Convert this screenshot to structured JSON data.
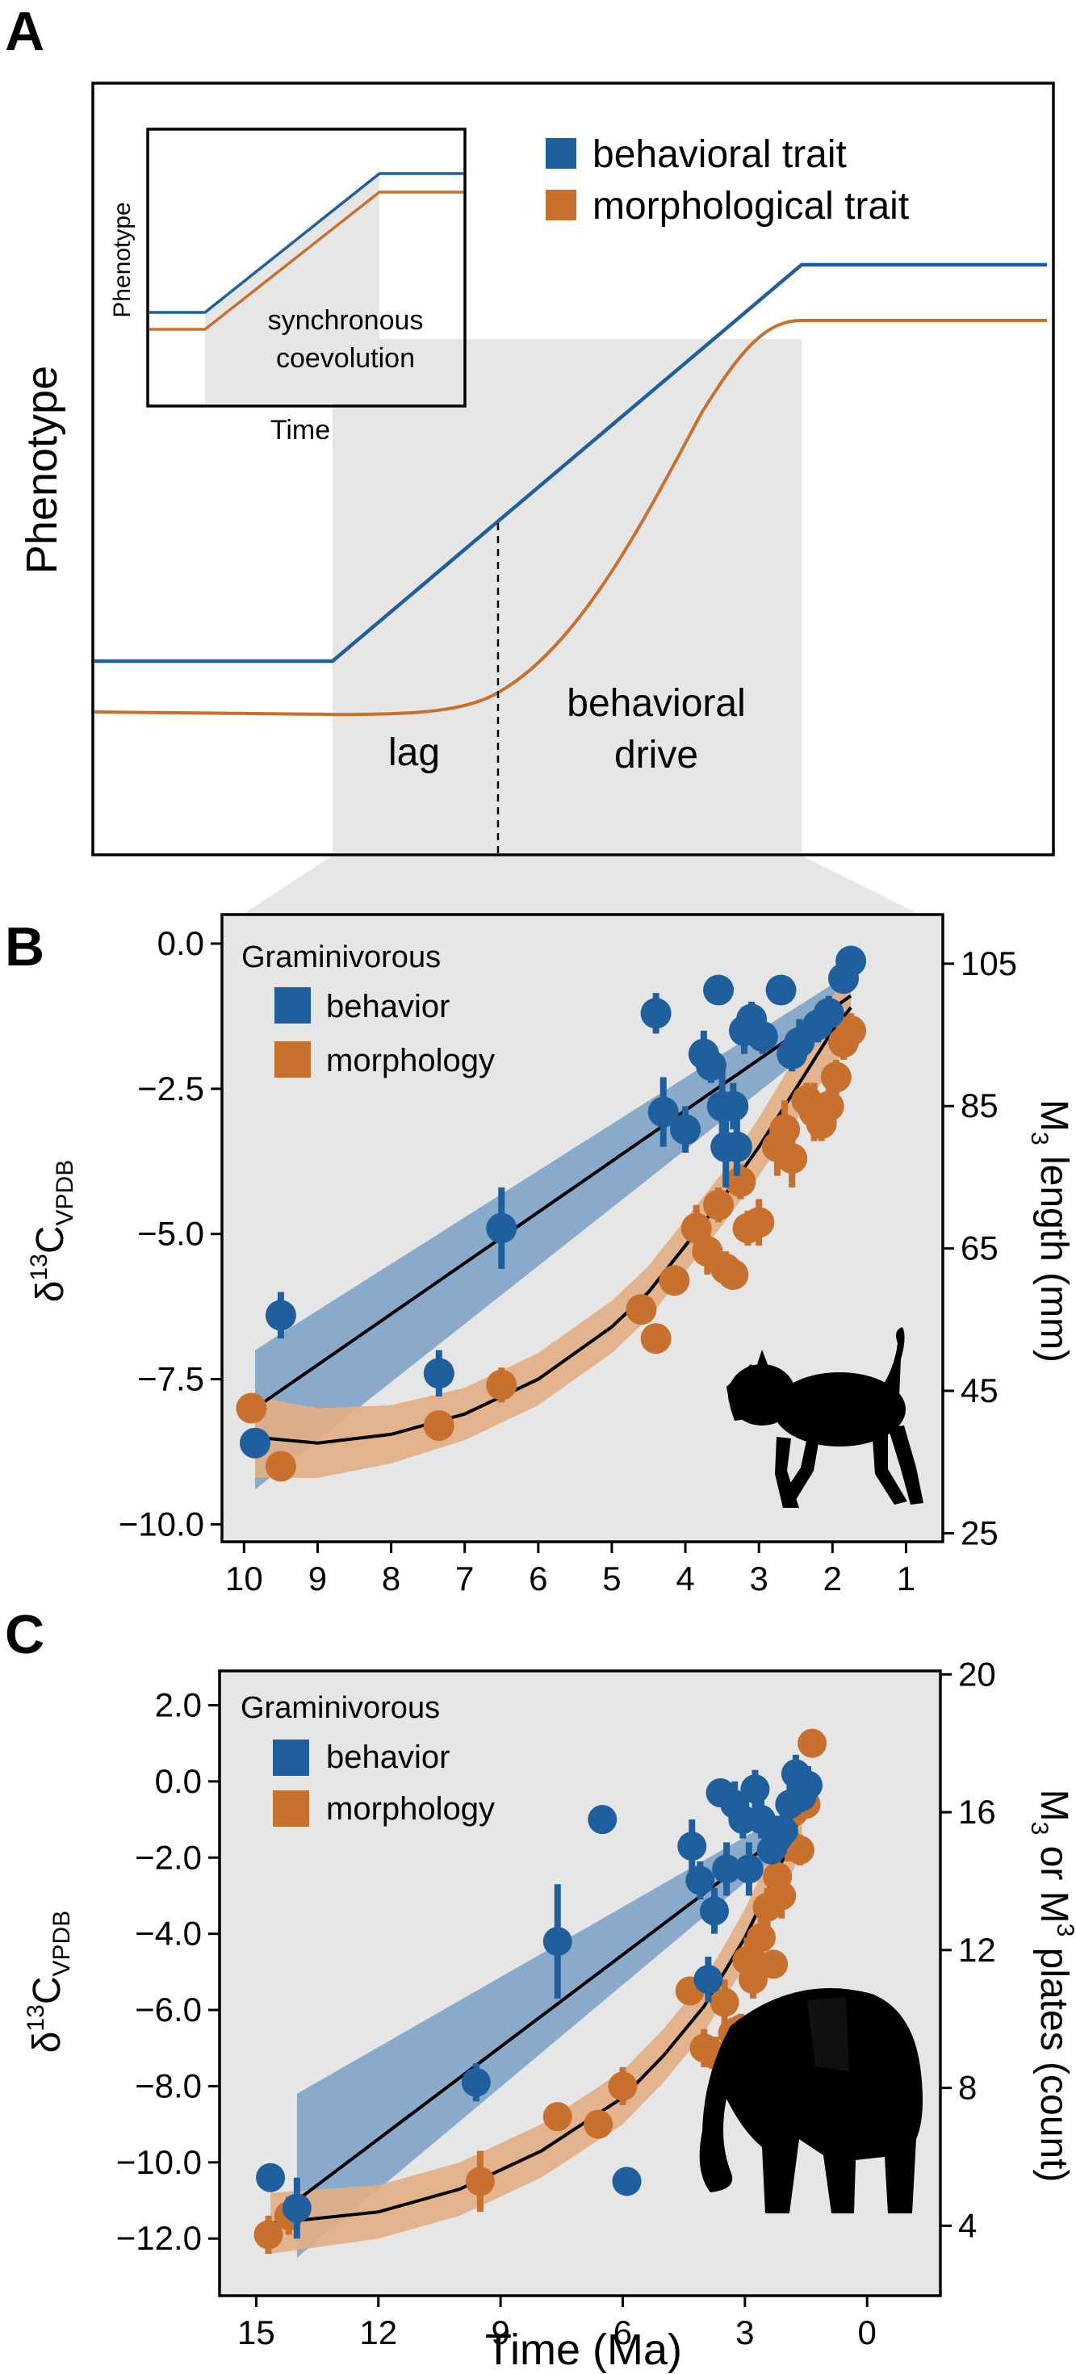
{
  "panels": {
    "a": "A",
    "b": "B",
    "c": "C"
  },
  "colors": {
    "behavior": "#1f5f9e",
    "morphology": "#c8702e",
    "behavior_band": "#7fa3c9",
    "morphology_band": "#e2ad84",
    "shade": "#e6e6e6",
    "fit": "#000000"
  },
  "icons": {
    "panel_b": "warthog-silhouette-icon",
    "panel_c": "elephant-silhouette-icon"
  },
  "chart_data": [
    {
      "type": "line",
      "panel": "A",
      "title": "",
      "ylabel": "Phenotype",
      "xlabel": "",
      "legend": [
        "behavioral trait",
        "morphological trait"
      ],
      "annotations": [
        "lag",
        "behavioral drive"
      ],
      "inset": {
        "ylabel": "Phenotype",
        "xlabel": "Time",
        "annotation": [
          "synchronous",
          "coevolution"
        ]
      }
    },
    {
      "type": "scatter",
      "panel": "B",
      "ylabel": "δ13CVPDB",
      "ylabel_parts": [
        "δ",
        "13",
        "C",
        "VPDB"
      ],
      "y2label": "M3 length (mm)",
      "y2label_parts": [
        "M",
        "3",
        " length (mm)"
      ],
      "xlabel": "",
      "xlim": [
        10.3,
        0.5
      ],
      "ylim": [
        -10.3,
        0.5
      ],
      "y2lim": [
        23.8,
        111.9
      ],
      "xticks": [
        10,
        9,
        8,
        7,
        6,
        5,
        4,
        3,
        2,
        1
      ],
      "yticks": [
        0.0,
        -2.5,
        -5.0,
        -7.5,
        -10.0
      ],
      "ytick_labels": [
        "0.0",
        "−2.5",
        "−5.0",
        "−7.5",
        "−10.0"
      ],
      "y2ticks": [
        105,
        85,
        65,
        45,
        25
      ],
      "legend_title": "Graminivorous",
      "legend": [
        "behavior",
        "morphology"
      ],
      "legend_position": "top-left",
      "series": [
        {
          "name": "behavior",
          "points": [
            {
              "x": 9.85,
              "y": -8.6,
              "e": 0
            },
            {
              "x": 9.5,
              "y": -6.4,
              "e": 0.4
            },
            {
              "x": 7.35,
              "y": -7.4,
              "e": 0.4
            },
            {
              "x": 6.5,
              "y": -4.9,
              "e": 0.7
            },
            {
              "x": 4.4,
              "y": -1.2,
              "e": 0.35
            },
            {
              "x": 4.3,
              "y": -2.9,
              "e": 0.6
            },
            {
              "x": 4.0,
              "y": -3.2,
              "e": 0.4
            },
            {
              "x": 3.75,
              "y": -1.9,
              "e": 0.4
            },
            {
              "x": 3.65,
              "y": -2.1,
              "e": 0.3
            },
            {
              "x": 3.55,
              "y": -0.8,
              "e": 0.2
            },
            {
              "x": 3.5,
              "y": -2.8,
              "e": 0.7
            },
            {
              "x": 3.45,
              "y": -3.5,
              "e": 0.7
            },
            {
              "x": 3.35,
              "y": -2.8,
              "e": 0.4
            },
            {
              "x": 3.3,
              "y": -3.5,
              "e": 0.5
            },
            {
              "x": 3.2,
              "y": -1.5,
              "e": 0.4
            },
            {
              "x": 3.1,
              "y": -1.3,
              "e": 0.3
            },
            {
              "x": 2.95,
              "y": -1.6,
              "e": 0.3
            },
            {
              "x": 2.7,
              "y": -0.8,
              "e": 0
            },
            {
              "x": 2.55,
              "y": -1.9,
              "e": 0.3
            },
            {
              "x": 2.45,
              "y": -1.7,
              "e": 0.4
            },
            {
              "x": 2.2,
              "y": -1.4,
              "e": 0.3
            },
            {
              "x": 2.05,
              "y": -1.2,
              "e": 0.3
            },
            {
              "x": 1.85,
              "y": -0.6,
              "e": 0.2
            },
            {
              "x": 1.75,
              "y": -0.3,
              "e": 0
            }
          ]
        },
        {
          "name": "morphology",
          "points": [
            {
              "x": 9.9,
              "y": -8.0,
              "e": 0
            },
            {
              "x": 9.5,
              "y": -9.0,
              "e": 0
            },
            {
              "x": 7.35,
              "y": -8.3,
              "e": 0
            },
            {
              "x": 6.5,
              "y": -7.6,
              "e": 0.3
            },
            {
              "x": 4.6,
              "y": -6.3,
              "e": 0
            },
            {
              "x": 4.4,
              "y": -6.8,
              "e": 0
            },
            {
              "x": 4.15,
              "y": -5.8,
              "e": 0
            },
            {
              "x": 3.85,
              "y": -4.9,
              "e": 0.4
            },
            {
              "x": 3.7,
              "y": -5.3,
              "e": 0.4
            },
            {
              "x": 3.55,
              "y": -4.5,
              "e": 0.3
            },
            {
              "x": 3.45,
              "y": -5.6,
              "e": 0.3
            },
            {
              "x": 3.35,
              "y": -5.7,
              "e": 0.2
            },
            {
              "x": 3.25,
              "y": -4.1,
              "e": 0.3
            },
            {
              "x": 3.15,
              "y": -4.9,
              "e": 0.3
            },
            {
              "x": 3.0,
              "y": -4.8,
              "e": 0.4
            },
            {
              "x": 2.75,
              "y": -3.5,
              "e": 0.5
            },
            {
              "x": 2.65,
              "y": -3.2,
              "e": 0.5
            },
            {
              "x": 2.55,
              "y": -3.7,
              "e": 0.5
            },
            {
              "x": 2.35,
              "y": -2.7,
              "e": 0.3
            },
            {
              "x": 2.25,
              "y": -2.9,
              "e": 0.5
            },
            {
              "x": 2.15,
              "y": -3.1,
              "e": 0.3
            },
            {
              "x": 2.05,
              "y": -2.8,
              "e": 0.3
            },
            {
              "x": 1.95,
              "y": -2.3,
              "e": 0.3
            },
            {
              "x": 1.85,
              "y": -1.7,
              "e": 0.3
            },
            {
              "x": 1.75,
              "y": -1.5,
              "e": 0.3
            }
          ]
        }
      ],
      "fits": [
        {
          "name": "behavior",
          "x": [
            9.85,
            1.75
          ],
          "y": [
            -8.0,
            -0.9
          ],
          "band_lo": [
            1.4,
            0.4
          ],
          "band_hi": [
            1.0,
            0.4
          ]
        },
        {
          "name": "morphology",
          "x": [
            9.85,
            9.0,
            8.0,
            7.0,
            6.0,
            5.0,
            4.5,
            4.0,
            3.5,
            3.0,
            2.5,
            2.0,
            1.75
          ],
          "y": [
            -8.5,
            -8.6,
            -8.45,
            -8.1,
            -7.5,
            -6.6,
            -6.0,
            -5.2,
            -4.4,
            -3.5,
            -2.5,
            -1.5,
            -1.1
          ],
          "band": [
            0.7,
            0.6,
            0.5,
            0.45,
            0.45,
            0.45,
            0.45,
            0.45,
            0.45,
            0.5,
            0.55,
            0.6,
            0.65
          ]
        }
      ]
    },
    {
      "type": "scatter",
      "panel": "C",
      "ylabel": "δ13CVPDB",
      "ylabel_parts": [
        "δ",
        "13",
        "C",
        "VPDB"
      ],
      "y2label": "M3 or M3 plates (count)",
      "y2label_parts": [
        "M",
        "3",
        " or M",
        "3",
        " plates (count)"
      ],
      "xlabel": "Time (Ma)",
      "xlim": [
        15.9,
        -1.8
      ],
      "ylim": [
        -13.5,
        2.9
      ],
      "y2lim": [
        1.97,
        20.1
      ],
      "xticks": [
        15,
        12,
        9,
        6,
        3,
        0
      ],
      "yticks": [
        2.0,
        0.0,
        -2.0,
        -4.0,
        -6.0,
        -8.0,
        -10.0,
        -12.0
      ],
      "ytick_labels": [
        "2.0",
        "0.0",
        "−2.0",
        "−4.0",
        "−6.0",
        "−8.0",
        "−10.0",
        "−12.0"
      ],
      "y2ticks": [
        20,
        16,
        12,
        8,
        4
      ],
      "legend_title": "Graminivorous",
      "legend": [
        "behavior",
        "morphology"
      ],
      "legend_position": "top-left",
      "series": [
        {
          "name": "behavior",
          "points": [
            {
              "x": 14.65,
              "y": -10.4,
              "e": 0
            },
            {
              "x": 14.0,
              "y": -11.2,
              "e": 0.8
            },
            {
              "x": 9.6,
              "y": -7.9,
              "e": 0.5
            },
            {
              "x": 7.6,
              "y": -4.2,
              "e": 1.5
            },
            {
              "x": 6.5,
              "y": -1.0,
              "e": 0
            },
            {
              "x": 5.9,
              "y": -10.5,
              "e": 0
            },
            {
              "x": 4.3,
              "y": -1.7,
              "e": 0.7
            },
            {
              "x": 4.1,
              "y": -2.6,
              "e": 0.5
            },
            {
              "x": 3.9,
              "y": -5.2,
              "e": 0.6
            },
            {
              "x": 3.75,
              "y": -3.4,
              "e": 0.6
            },
            {
              "x": 3.6,
              "y": -0.3,
              "e": 0
            },
            {
              "x": 3.45,
              "y": -2.3,
              "e": 0.7
            },
            {
              "x": 3.25,
              "y": -0.6,
              "e": 0.6
            },
            {
              "x": 3.05,
              "y": -1.0,
              "e": 0.5
            },
            {
              "x": 2.9,
              "y": -2.3,
              "e": 0.7
            },
            {
              "x": 2.75,
              "y": -0.2,
              "e": 0.5
            },
            {
              "x": 2.6,
              "y": -1.0,
              "e": 0.5
            },
            {
              "x": 2.35,
              "y": -1.8,
              "e": 0.3
            },
            {
              "x": 2.2,
              "y": -1.5,
              "e": 0.6
            },
            {
              "x": 2.05,
              "y": -1.3,
              "e": 0.6
            },
            {
              "x": 1.9,
              "y": -0.6,
              "e": 0.5
            },
            {
              "x": 1.75,
              "y": 0.2,
              "e": 0.5
            },
            {
              "x": 1.6,
              "y": -0.4,
              "e": 0.4
            },
            {
              "x": 1.45,
              "y": -0.1,
              "e": 0.5
            }
          ]
        },
        {
          "name": "morphology",
          "points": [
            {
              "x": 14.7,
              "y": -11.9,
              "e": 0.5
            },
            {
              "x": 14.2,
              "y": -11.4,
              "e": 0.5
            },
            {
              "x": 9.5,
              "y": -10.5,
              "e": 0.8
            },
            {
              "x": 7.6,
              "y": -8.8,
              "e": 0
            },
            {
              "x": 6.6,
              "y": -9.0,
              "e": 0
            },
            {
              "x": 6.0,
              "y": -8.0,
              "e": 0.5
            },
            {
              "x": 4.35,
              "y": -5.5,
              "e": 0
            },
            {
              "x": 4.0,
              "y": -7.0,
              "e": 0.5
            },
            {
              "x": 3.7,
              "y": -7.2,
              "e": 0.5
            },
            {
              "x": 3.5,
              "y": -5.8,
              "e": 0.6
            },
            {
              "x": 3.3,
              "y": -6.6,
              "e": 0.4
            },
            {
              "x": 3.1,
              "y": -6.5,
              "e": 0.4
            },
            {
              "x": 2.95,
              "y": -4.7,
              "e": 0.6
            },
            {
              "x": 2.8,
              "y": -5.2,
              "e": 0.5
            },
            {
              "x": 2.6,
              "y": -4.1,
              "e": 0.8
            },
            {
              "x": 2.45,
              "y": -3.3,
              "e": 0.5
            },
            {
              "x": 2.3,
              "y": -4.8,
              "e": 0.3
            },
            {
              "x": 2.2,
              "y": -2.5,
              "e": 0.5
            },
            {
              "x": 2.1,
              "y": -3.0,
              "e": 0.6
            },
            {
              "x": 1.95,
              "y": -1.6,
              "e": 0.5
            },
            {
              "x": 1.8,
              "y": -0.8,
              "e": 0.5
            },
            {
              "x": 1.65,
              "y": -1.8,
              "e": 0.4
            },
            {
              "x": 1.5,
              "y": -0.6,
              "e": 0
            },
            {
              "x": 1.35,
              "y": 1.0,
              "e": 0
            }
          ]
        }
      ],
      "fits": [
        {
          "name": "behavior",
          "x": [
            14.0,
            1.6
          ],
          "y": [
            -11.0,
            -1.0
          ],
          "band_lo": [
            1.5,
            0.4
          ],
          "band_hi": [
            2.8,
            0.4
          ]
        },
        {
          "name": "morphology",
          "x": [
            14.65,
            12.0,
            10.0,
            8.0,
            6.0,
            5.0,
            4.0,
            3.5,
            3.0,
            2.5,
            2.0,
            1.6
          ],
          "y": [
            -11.6,
            -11.3,
            -10.7,
            -9.7,
            -8.3,
            -7.2,
            -5.9,
            -5.0,
            -4.1,
            -3.0,
            -1.9,
            -0.8
          ],
          "band": [
            0.8,
            0.7,
            0.7,
            0.7,
            0.7,
            0.7,
            0.7,
            0.7,
            0.75,
            0.8,
            0.9,
            1.0
          ]
        }
      ]
    }
  ]
}
